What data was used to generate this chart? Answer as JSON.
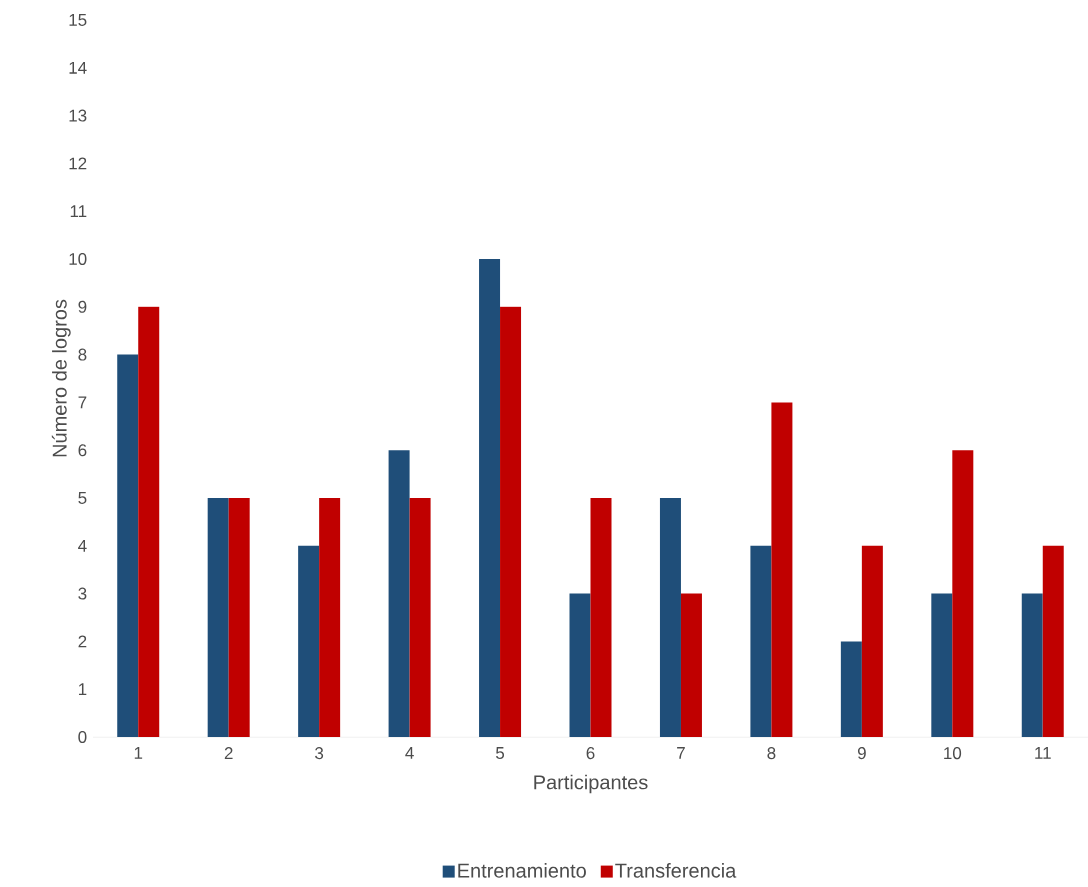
{
  "chart_data": {
    "type": "bar",
    "xlabel": "Participantes",
    "ylabel": "Número de logros",
    "categories": [
      "1",
      "2",
      "3",
      "4",
      "5",
      "6",
      "7",
      "8",
      "9",
      "10",
      "11"
    ],
    "series": [
      {
        "name": "Entrenamiento",
        "color": "#1f4e79",
        "values": [
          8,
          5,
          4,
          6,
          10,
          3,
          5,
          4,
          2,
          3,
          3
        ]
      },
      {
        "name": "Transferencia",
        "color": "#c00000",
        "values": [
          9,
          5,
          5,
          5,
          9,
          5,
          3,
          7,
          4,
          6,
          4
        ]
      }
    ],
    "ylim": [
      0,
      15
    ],
    "yticks": [
      0,
      1,
      2,
      3,
      4,
      5,
      6,
      7,
      8,
      9,
      10,
      11,
      12,
      13,
      14,
      15
    ],
    "grid": false,
    "legend": "bottom"
  }
}
